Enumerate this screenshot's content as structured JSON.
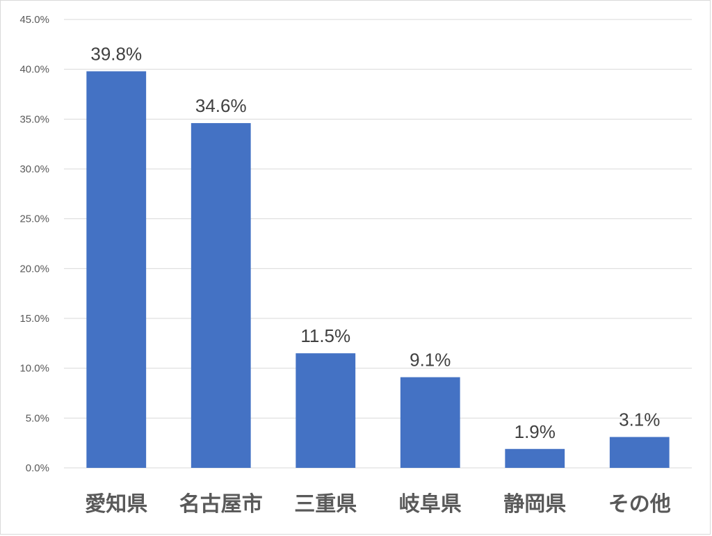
{
  "chart_data": {
    "type": "bar",
    "categories": [
      "愛知県",
      "名古屋市",
      "三重県",
      "岐阜県",
      "静岡県",
      "その他"
    ],
    "values": [
      39.8,
      34.6,
      11.5,
      9.1,
      1.9,
      3.1
    ],
    "data_labels": [
      "39.8%",
      "34.6%",
      "11.5%",
      "9.1%",
      "1.9%",
      "3.1%"
    ],
    "ylim": [
      0,
      45
    ],
    "yticks": [
      0,
      5,
      10,
      15,
      20,
      25,
      30,
      35,
      40,
      45
    ],
    "ytick_labels": [
      "0.0%",
      "5.0%",
      "10.0%",
      "15.0%",
      "20.0%",
      "25.0%",
      "30.0%",
      "35.0%",
      "40.0%",
      "45.0%"
    ],
    "grid": true,
    "legend": "none",
    "bar_color": "#4472c4",
    "grid_color": "#d9d9d9"
  }
}
